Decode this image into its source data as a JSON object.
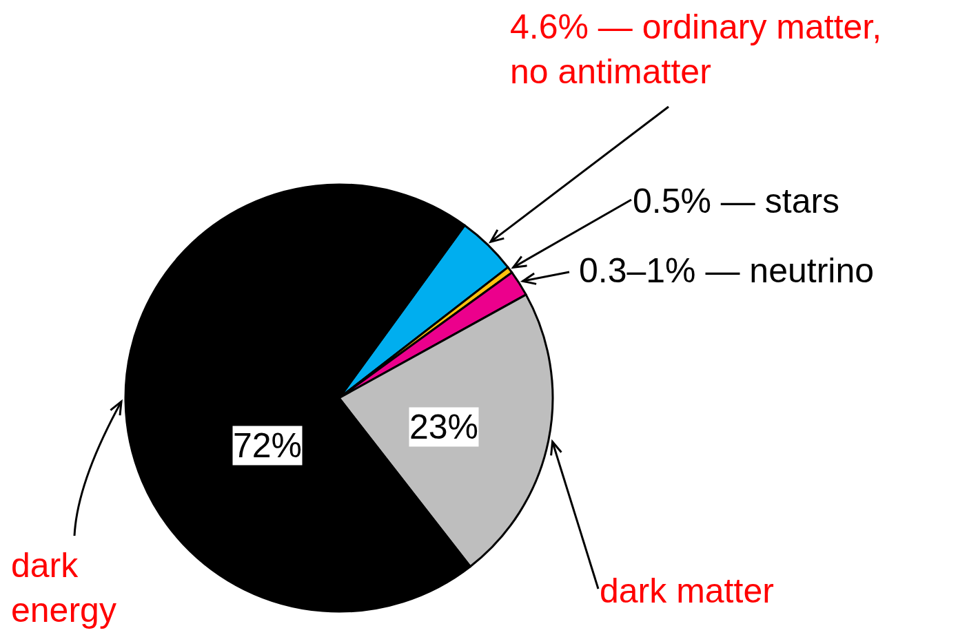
{
  "chart_data": {
    "type": "pie",
    "categories": [
      "4.6% — ordinary matter, no antimatter",
      "0.5% — stars",
      "0.3–1% — neutrino",
      "dark matter",
      "dark energy"
    ],
    "values": [
      4.6,
      0.5,
      2,
      23,
      72
    ],
    "colors": [
      "#00aeef",
      "#ffc20e",
      "#ec008c",
      "#bebebe",
      "#000000"
    ],
    "value_labels": [
      null,
      null,
      null,
      "23%",
      "72%"
    ]
  }
}
